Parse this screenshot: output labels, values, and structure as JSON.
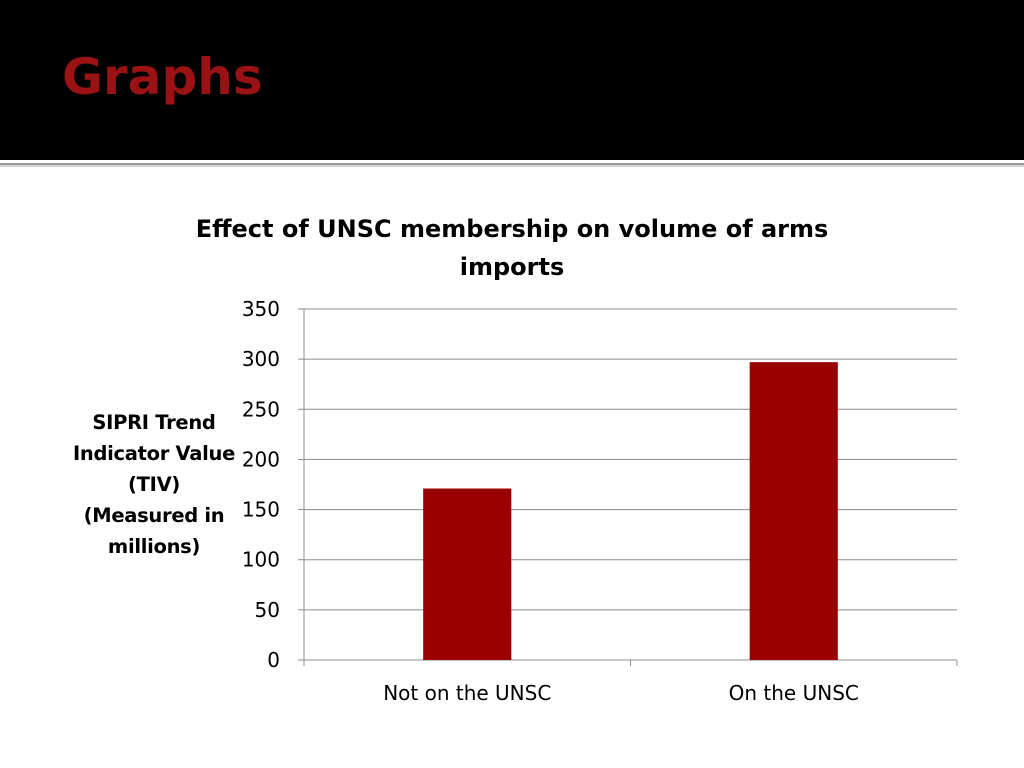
{
  "slide": {
    "title": "Graphs",
    "accent_color": "#9b1214",
    "header_color": "#000000"
  },
  "chart_data": {
    "type": "bar",
    "title_lines": [
      "Effect of UNSC membership on volume of arms",
      "imports"
    ],
    "categories": [
      "Not on the UNSC",
      "On the UNSC"
    ],
    "values": [
      171,
      297
    ],
    "ylabel_lines": [
      "SIPRI Trend",
      "Indicator Value",
      "(TIV)",
      "(Measured in",
      "millions)"
    ],
    "xlabel": "",
    "ylim": [
      0,
      350
    ],
    "yticks": [
      "0",
      "50",
      "100",
      "150",
      "200",
      "250",
      "300",
      "350"
    ],
    "grid": true,
    "legend": "none",
    "bar_color": "#9b0000"
  }
}
